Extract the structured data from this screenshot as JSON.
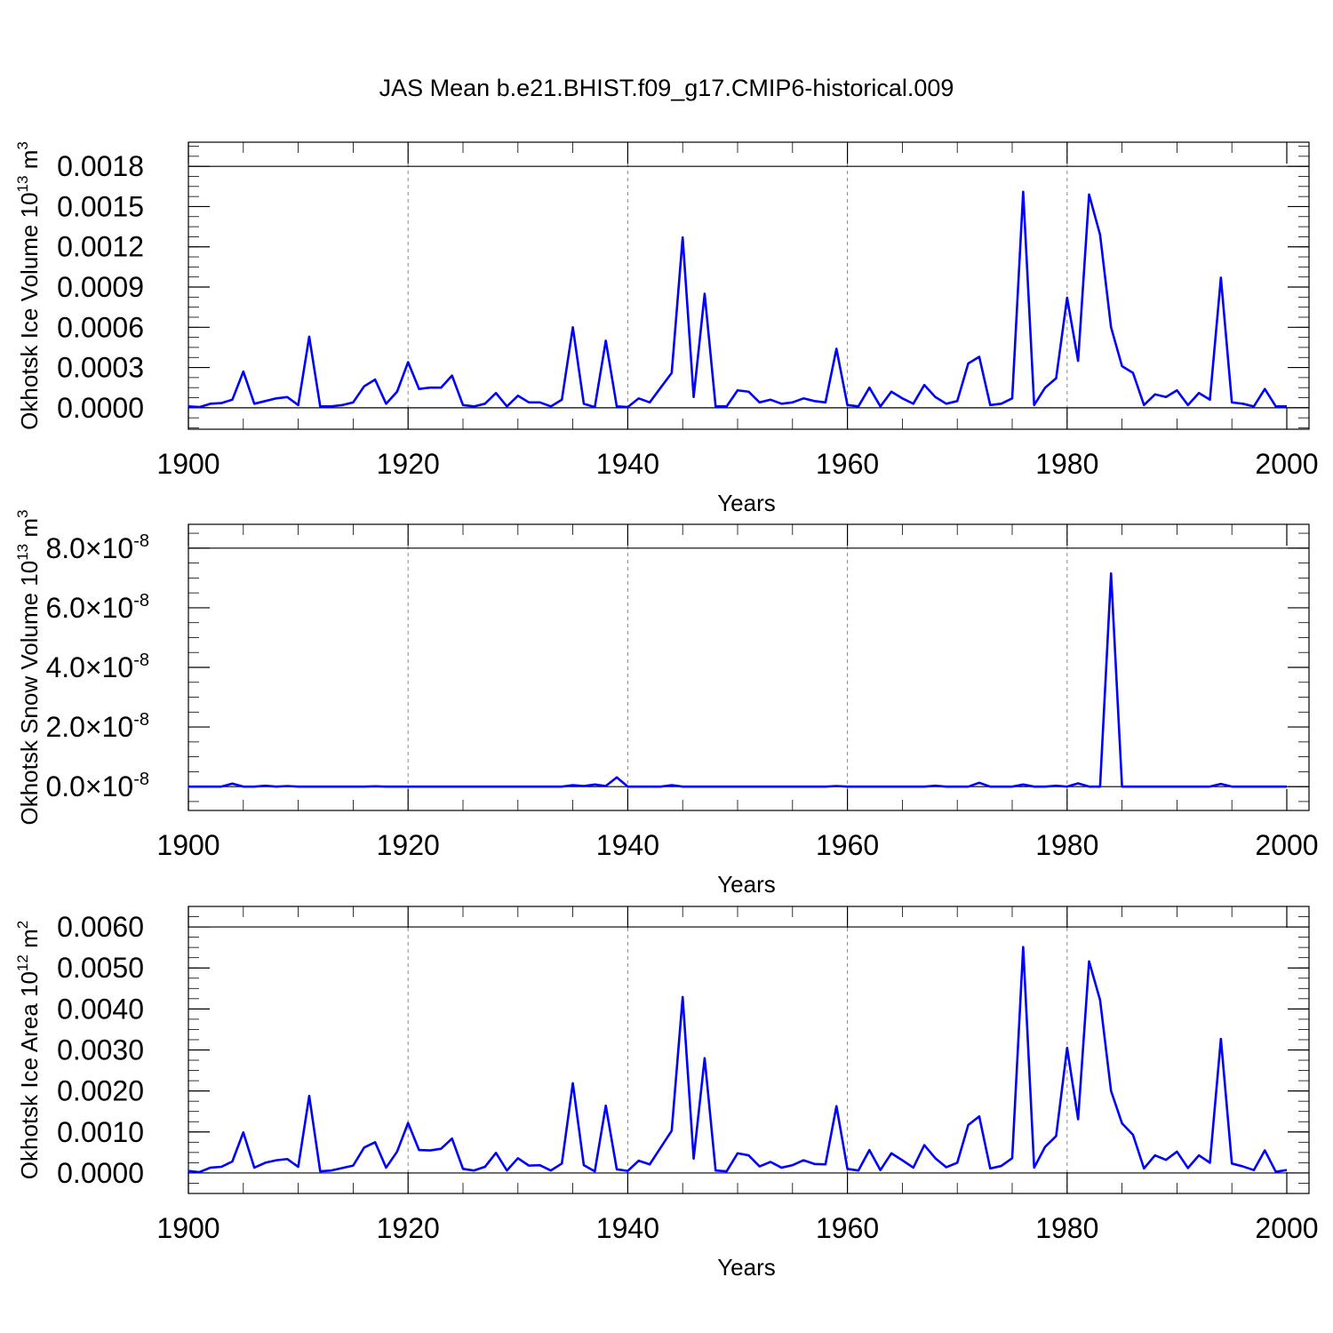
{
  "figure_title": "JAS Mean b.e21.BHIST.f09_g17.CMIP6-historical.009",
  "chart_data": [
    {
      "type": "line",
      "title": "",
      "xlabel": "Years",
      "ylabel": "Okhotsk Ice Volume 10",
      "ylabel_sup": "13",
      "ylabel_unit": "m",
      "ylabel_unit_sup": "3",
      "xlim": [
        1900,
        2000
      ],
      "ylim": [
        -0.00016,
        0.00198
      ],
      "xticks": [
        1900,
        1920,
        1940,
        1960,
        1980,
        2000
      ],
      "xtick_labels": [
        "1900",
        "1920",
        "1940",
        "1960",
        "1980",
        "2000"
      ],
      "yticks": [
        0.0,
        0.0003,
        0.0006,
        0.0009,
        0.0012,
        0.0015,
        0.0018
      ],
      "ytick_labels": [
        "0.0000",
        "0.0003",
        "0.0006",
        "0.0009",
        "0.0012",
        "0.0015",
        "0.0018"
      ],
      "grid_years": [
        1920,
        1940,
        1960,
        1980
      ],
      "color": "#0000ff",
      "x": [
        1900,
        1901,
        1902,
        1903,
        1904,
        1905,
        1906,
        1907,
        1908,
        1909,
        1910,
        1911,
        1912,
        1913,
        1914,
        1915,
        1916,
        1917,
        1918,
        1919,
        1920,
        1921,
        1922,
        1923,
        1924,
        1925,
        1926,
        1927,
        1928,
        1929,
        1930,
        1931,
        1932,
        1933,
        1934,
        1935,
        1936,
        1937,
        1938,
        1939,
        1940,
        1941,
        1942,
        1943,
        1944,
        1945,
        1946,
        1947,
        1948,
        1949,
        1950,
        1951,
        1952,
        1953,
        1954,
        1955,
        1956,
        1957,
        1958,
        1959,
        1960,
        1961,
        1962,
        1963,
        1964,
        1965,
        1966,
        1967,
        1968,
        1969,
        1970,
        1971,
        1972,
        1973,
        1974,
        1975,
        1976,
        1977,
        1978,
        1979,
        1980,
        1981,
        1982,
        1983,
        1984,
        1985,
        1986,
        1987,
        1988,
        1989,
        1990,
        1991,
        1992,
        1993,
        1994,
        1995,
        1996,
        1997,
        1998,
        1999,
        2000
      ],
      "values": [
        1e-05,
        5e-06,
        3e-05,
        3.5e-05,
        6e-05,
        0.00027,
        3e-05,
        5e-05,
        7e-05,
        8e-05,
        2e-05,
        0.00053,
        1e-05,
        1e-05,
        2e-05,
        4e-05,
        0.00016,
        0.00021,
        3e-05,
        0.00012,
        0.00034,
        0.00014,
        0.00015,
        0.00015,
        0.00024,
        2e-05,
        1e-05,
        3e-05,
        0.00011,
        1e-05,
        9e-05,
        4e-05,
        4e-05,
        1e-05,
        6e-05,
        0.0006,
        3e-05,
        5e-06,
        0.0005,
        1e-05,
        5e-06,
        7e-05,
        4e-05,
        0.00015,
        0.00026,
        0.00127,
        8e-05,
        0.00085,
        1e-05,
        1e-05,
        0.00013,
        0.00012,
        4e-05,
        6e-05,
        3e-05,
        4e-05,
        7e-05,
        5e-05,
        4e-05,
        0.00044,
        2e-05,
        1e-05,
        0.00015,
        1e-05,
        0.00012,
        7e-05,
        3e-05,
        0.00017,
        8e-05,
        3e-05,
        5e-05,
        0.00033,
        0.00038,
        2e-05,
        3e-05,
        7e-05,
        0.00161,
        2e-05,
        0.00015,
        0.00022,
        0.00082,
        0.00035,
        0.00159,
        0.00129,
        0.0006,
        0.00031,
        0.00026,
        2e-05,
        0.0001,
        8e-05,
        0.00013,
        2e-05,
        0.00011,
        6e-05,
        0.00097,
        4e-05,
        3e-05,
        1e-05,
        0.00014,
        1e-05,
        1e-05
      ]
    },
    {
      "type": "line",
      "title": "",
      "xlabel": "Years",
      "ylabel": "Okhotsk Snow Volume 10",
      "ylabel_sup": "13",
      "ylabel_unit": "m",
      "ylabel_unit_sup": "3",
      "xlim": [
        1900,
        2000
      ],
      "ylim": [
        -8e-09,
        8.8e-08
      ],
      "xticks": [
        1900,
        1920,
        1940,
        1960,
        1980,
        2000
      ],
      "xtick_labels": [
        "1900",
        "1920",
        "1940",
        "1960",
        "1980",
        "2000"
      ],
      "yticks": [
        0.0,
        2e-08,
        4e-08,
        6e-08,
        8e-08
      ],
      "ytick_mantissas": [
        "0.0",
        "2.0",
        "4.0",
        "6.0",
        "8.0"
      ],
      "ytick_times": "×10",
      "ytick_exponent": "-8",
      "grid_years": [
        1920,
        1940,
        1960,
        1980
      ],
      "color": "#0000ff",
      "x": [
        1900,
        1901,
        1902,
        1903,
        1904,
        1905,
        1906,
        1907,
        1908,
        1909,
        1910,
        1911,
        1912,
        1913,
        1914,
        1915,
        1916,
        1917,
        1918,
        1919,
        1920,
        1921,
        1922,
        1923,
        1924,
        1925,
        1926,
        1927,
        1928,
        1929,
        1930,
        1931,
        1932,
        1933,
        1934,
        1935,
        1936,
        1937,
        1938,
        1939,
        1940,
        1941,
        1942,
        1943,
        1944,
        1945,
        1946,
        1947,
        1948,
        1949,
        1950,
        1951,
        1952,
        1953,
        1954,
        1955,
        1956,
        1957,
        1958,
        1959,
        1960,
        1961,
        1962,
        1963,
        1964,
        1965,
        1966,
        1967,
        1968,
        1969,
        1970,
        1971,
        1972,
        1973,
        1974,
        1975,
        1976,
        1977,
        1978,
        1979,
        1980,
        1981,
        1982,
        1983,
        1984,
        1985,
        1986,
        1987,
        1988,
        1989,
        1990,
        1991,
        1992,
        1993,
        1994,
        1995,
        1996,
        1997,
        1998,
        1999,
        2000
      ],
      "values": [
        0.0,
        0.0,
        0.0,
        0.0,
        1e-09,
        0.0,
        0.0,
        3e-10,
        0.0,
        2e-10,
        0.0,
        0.0,
        0.0,
        0.0,
        0.0,
        0.0,
        0.0,
        1e-10,
        0.0,
        0.0,
        0.0,
        0.0,
        0.0,
        0.0,
        0.0,
        0.0,
        0.0,
        0.0,
        0.0,
        0.0,
        0.0,
        0.0,
        0.0,
        0.0,
        0.0,
        5e-10,
        2e-10,
        7e-10,
        2e-10,
        3.1e-09,
        0.0,
        0.0,
        0.0,
        0.0,
        5e-10,
        0.0,
        0.0,
        0.0,
        0.0,
        0.0,
        0.0,
        0.0,
        0.0,
        0.0,
        0.0,
        0.0,
        0.0,
        0.0,
        0.0,
        2e-10,
        0.0,
        0.0,
        0.0,
        0.0,
        0.0,
        0.0,
        0.0,
        0.0,
        3e-10,
        0.0,
        0.0,
        0.0,
        1.3e-09,
        0.0,
        0.0,
        0.0,
        7e-10,
        0.0,
        0.0,
        3e-10,
        0.0,
        1.1e-09,
        0.0,
        0.0,
        7.15e-08,
        0.0,
        0.0,
        0.0,
        0.0,
        0.0,
        0.0,
        0.0,
        0.0,
        0.0,
        9e-10,
        0.0,
        0.0,
        0.0,
        0.0,
        0.0,
        0.0
      ]
    },
    {
      "type": "line",
      "title": "",
      "xlabel": "Years",
      "ylabel": "Okhotsk Ice Area 10",
      "ylabel_sup": "12",
      "ylabel_unit": "m",
      "ylabel_unit_sup": "2",
      "xlim": [
        1900,
        2000
      ],
      "ylim": [
        -0.0005,
        0.0065
      ],
      "xticks": [
        1900,
        1920,
        1940,
        1960,
        1980,
        2000
      ],
      "xtick_labels": [
        "1900",
        "1920",
        "1940",
        "1960",
        "1980",
        "2000"
      ],
      "yticks": [
        0.0,
        0.001,
        0.002,
        0.003,
        0.004,
        0.005,
        0.006
      ],
      "ytick_labels": [
        "0.0000",
        "0.0010",
        "0.0020",
        "0.0030",
        "0.0040",
        "0.0050",
        "0.0060"
      ],
      "grid_years": [
        1920,
        1940,
        1960,
        1980
      ],
      "color": "#0000ff",
      "x": [
        1900,
        1901,
        1902,
        1903,
        1904,
        1905,
        1906,
        1907,
        1908,
        1909,
        1910,
        1911,
        1912,
        1913,
        1914,
        1915,
        1916,
        1917,
        1918,
        1919,
        1920,
        1921,
        1922,
        1923,
        1924,
        1925,
        1926,
        1927,
        1928,
        1929,
        1930,
        1931,
        1932,
        1933,
        1934,
        1935,
        1936,
        1937,
        1938,
        1939,
        1940,
        1941,
        1942,
        1943,
        1944,
        1945,
        1946,
        1947,
        1948,
        1949,
        1950,
        1951,
        1952,
        1953,
        1954,
        1955,
        1956,
        1957,
        1958,
        1959,
        1960,
        1961,
        1962,
        1963,
        1964,
        1965,
        1966,
        1967,
        1968,
        1969,
        1970,
        1971,
        1972,
        1973,
        1974,
        1975,
        1976,
        1977,
        1978,
        1979,
        1980,
        1981,
        1982,
        1983,
        1984,
        1985,
        1986,
        1987,
        1988,
        1989,
        1990,
        1991,
        1992,
        1993,
        1994,
        1995,
        1996,
        1997,
        1998,
        1999,
        2000
      ],
      "values": [
        5e-05,
        2e-05,
        0.00013,
        0.00015,
        0.00028,
        0.00099,
        0.00013,
        0.00025,
        0.00031,
        0.00034,
        0.00015,
        0.00188,
        4e-05,
        6e-05,
        0.00012,
        0.00018,
        0.00062,
        0.00075,
        0.00013,
        0.00052,
        0.00122,
        0.00056,
        0.00055,
        0.00059,
        0.00084,
        0.0001,
        6e-05,
        0.00015,
        0.00049,
        6e-05,
        0.00036,
        0.00018,
        0.00019,
        6e-05,
        0.00023,
        0.00219,
        0.00019,
        4e-05,
        0.00164,
        9e-05,
        5e-05,
        0.0003,
        0.00021,
        0.00062,
        0.00103,
        0.00429,
        0.00035,
        0.0028,
        6e-05,
        4e-05,
        0.00048,
        0.00043,
        0.00016,
        0.00027,
        0.00013,
        0.00019,
        0.00031,
        0.00022,
        0.00021,
        0.00163,
        0.0001,
        6e-05,
        0.00056,
        7e-05,
        0.00048,
        0.00031,
        0.00013,
        0.00068,
        0.00036,
        0.00014,
        0.00025,
        0.00117,
        0.00138,
        0.00011,
        0.00017,
        0.00036,
        0.00551,
        0.00013,
        0.00064,
        0.0009,
        0.00305,
        0.00131,
        0.00516,
        0.00422,
        0.002,
        0.00121,
        0.00093,
        0.00011,
        0.00043,
        0.00032,
        0.00052,
        0.00012,
        0.00043,
        0.00025,
        0.00327,
        0.00023,
        0.00016,
        7e-05,
        0.00055,
        3e-05,
        7e-05
      ]
    }
  ]
}
